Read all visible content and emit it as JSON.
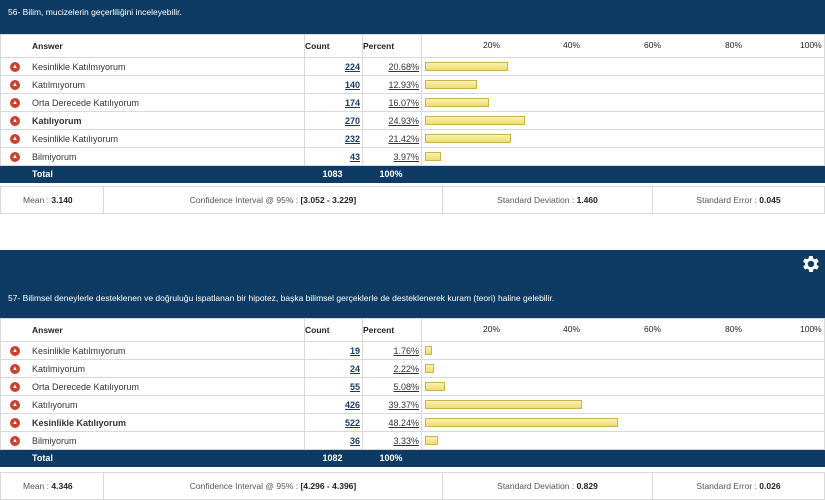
{
  "colors": {
    "header_bg": "#0d3b63",
    "bar_fill": "#f0dc6a",
    "icon": "#c9422e"
  },
  "columns": {
    "answer": "Answer",
    "count": "Count",
    "percent": "Percent"
  },
  "scale_ticks": [
    "20%",
    "40%",
    "60%",
    "80%",
    "100%"
  ],
  "questions": [
    {
      "title": "56- Bilim, mucizelerin geçerliliğini inceleyebilir.",
      "rows": [
        {
          "answer": "Kesinlikle Katılmıyorum",
          "count": "224",
          "percent": "20.68%",
          "value": 20.68,
          "bold": false
        },
        {
          "answer": "Katılmıyorum",
          "count": "140",
          "percent": "12.93%",
          "value": 12.93,
          "bold": false
        },
        {
          "answer": "Orta Derecede Katılıyorum",
          "count": "174",
          "percent": "16.07%",
          "value": 16.07,
          "bold": false
        },
        {
          "answer": "Katılıyorum",
          "count": "270",
          "percent": "24.93%",
          "value": 24.93,
          "bold": true
        },
        {
          "answer": "Kesinlikle Katılıyorum",
          "count": "232",
          "percent": "21.42%",
          "value": 21.42,
          "bold": false
        },
        {
          "answer": "Bilmiyorum",
          "count": "43",
          "percent": "3.97%",
          "value": 3.97,
          "bold": false
        }
      ],
      "total": {
        "label": "Total",
        "count": "1083",
        "percent": "100%"
      },
      "stats": {
        "mean_label": "Mean :",
        "mean": "3.140",
        "ci_label": "Confidence Interval @ 95% :",
        "ci": "[3.052 - 3.229]",
        "sd_label": "Standard Deviation :",
        "sd": "1.460",
        "se_label": "Standard Error :",
        "se": "0.045"
      }
    },
    {
      "title": "57- Bilimsel deneylerle desteklenen ve doğruluğu ispatlanan bir hipotez, başka bilimsel gerçeklerle de desteklenerek kuram (teori) haline gelebilir.",
      "rows": [
        {
          "answer": "Kesinlikle Katılmıyorum",
          "count": "19",
          "percent": "1.76%",
          "value": 1.76,
          "bold": false
        },
        {
          "answer": "Katılmıyorum",
          "count": "24",
          "percent": "2.22%",
          "value": 2.22,
          "bold": false
        },
        {
          "answer": "Orta Derecede Katılıyorum",
          "count": "55",
          "percent": "5.08%",
          "value": 5.08,
          "bold": false
        },
        {
          "answer": "Katılıyorum",
          "count": "426",
          "percent": "39.37%",
          "value": 39.37,
          "bold": false
        },
        {
          "answer": "Kesinlikle Katılıyorum",
          "count": "522",
          "percent": "48.24%",
          "value": 48.24,
          "bold": true
        },
        {
          "answer": "Bilmiyorum",
          "count": "36",
          "percent": "3.33%",
          "value": 3.33,
          "bold": false
        }
      ],
      "total": {
        "label": "Total",
        "count": "1082",
        "percent": "100%"
      },
      "stats": {
        "mean_label": "Mean :",
        "mean": "4.346",
        "ci_label": "Confidence Interval @ 95% :",
        "ci": "[4.296 - 4.396]",
        "sd_label": "Standard Deviation :",
        "sd": "0.829",
        "se_label": "Standard Error :",
        "se": "0.026"
      }
    }
  ]
}
